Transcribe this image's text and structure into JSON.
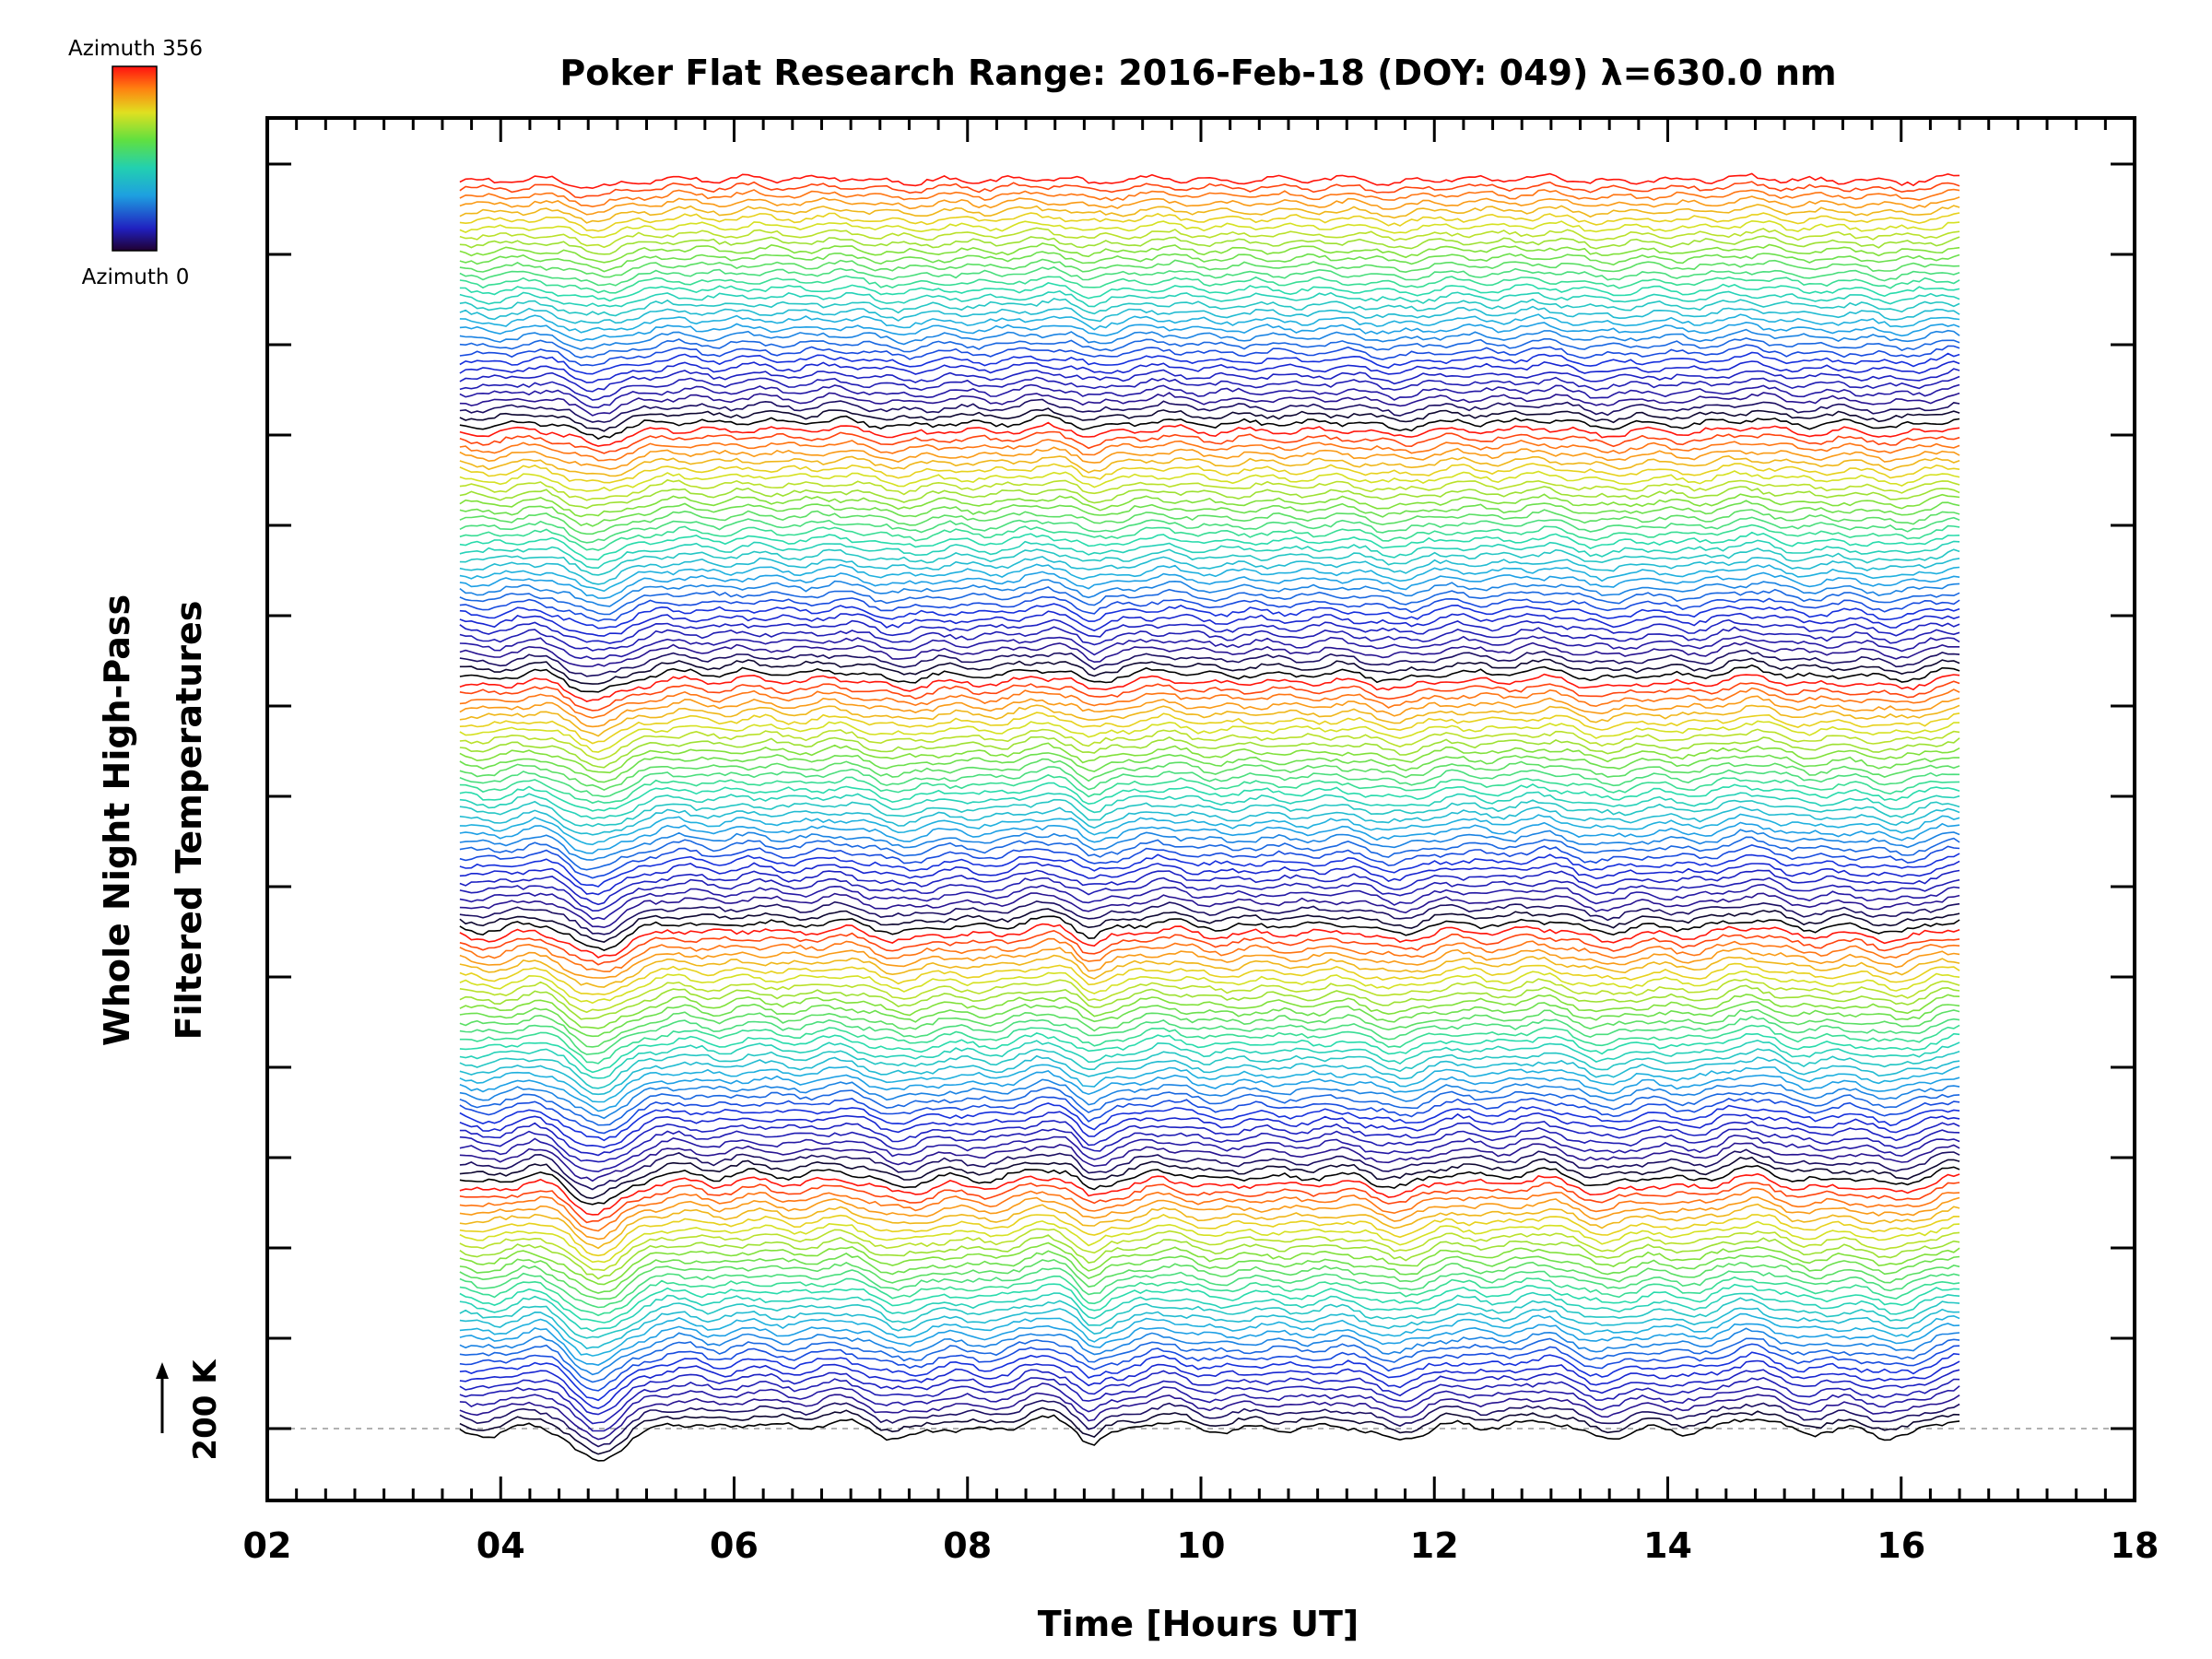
{
  "chart_data": {
    "type": "line",
    "title": "Poker Flat Research Range: 2016-Feb-18 (DOY: 049) λ=630.0 nm",
    "xlabel": "Time [Hours UT]",
    "ylabel_line1": "Whole Night High-Pass",
    "ylabel_line2": "Filtered Temperatures",
    "xlim": [
      2,
      18
    ],
    "xticks": [
      "02",
      "04",
      "06",
      "08",
      "10",
      "12",
      "14",
      "16",
      "18"
    ],
    "x_range_data": [
      3.65,
      16.5
    ],
    "trace_count": 160,
    "azimuth_range": [
      0,
      356
    ],
    "y_offset_per_trace_K": 25,
    "scale_bar_label": "200 K",
    "baseline_K": 200,
    "grid": false,
    "colorbar": {
      "top_label": "Azimuth 356",
      "bottom_label": "Azimuth 0",
      "colormap": "rainbow"
    },
    "colors": {
      "low": "#000000",
      "mid_low": "#1a1acc",
      "mid": "#22cc99",
      "mid_high": "#cccc22",
      "high": "#ff2200"
    }
  }
}
